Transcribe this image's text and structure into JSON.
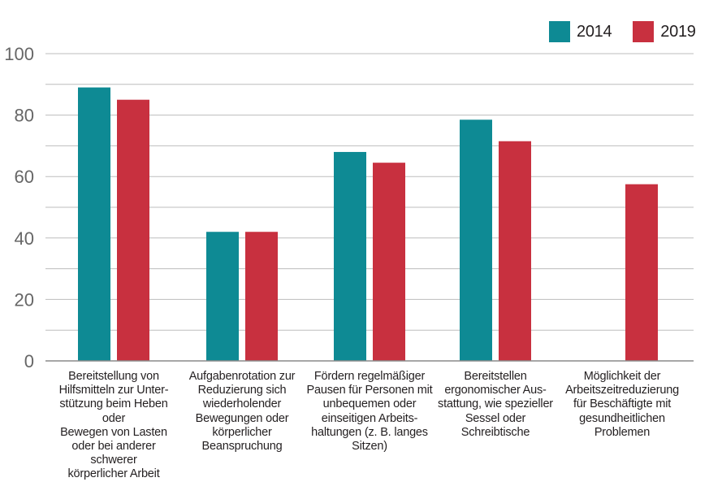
{
  "colors": {
    "2014": "#0e8a94",
    "2019": "#c8303f",
    "grid": "#bdbdbd",
    "axis": "#8a8a8a",
    "tick": "#666666"
  },
  "chart_data": {
    "type": "bar",
    "title": "",
    "xlabel": "",
    "ylabel": "",
    "ylim": [
      0,
      100
    ],
    "yticks": [
      0,
      20,
      40,
      60,
      80,
      100
    ],
    "grid": true,
    "legend_position": "top-right",
    "categories": [
      [
        "Bereitstellung von",
        "Hilfsmitteln zur Unter-",
        "stützung beim Heben oder",
        "Bewegen von Lasten",
        "oder bei anderer schwerer",
        "körperlicher Arbeit"
      ],
      [
        "Aufgabenrotation zur",
        "Reduzierung sich",
        "wiederholender",
        "Bewegungen oder",
        "körperlicher",
        "Beanspruchung"
      ],
      [
        "Fördern regelmäßiger",
        "Pausen für Personen mit",
        "unbequemen oder",
        "einseitigen Arbeits-",
        "haltungen (z. B. langes",
        "Sitzen)"
      ],
      [
        "Bereitstellen",
        "ergonomischer Aus-",
        "stattung, wie spezieller",
        "Sessel oder",
        "Schreibtische"
      ],
      [
        "Möglichkeit der",
        "Arbeitszeitreduzierung",
        "für Beschäftigte mit",
        "gesundheitlichen",
        "Problemen"
      ]
    ],
    "series": [
      {
        "name": "2014",
        "values": [
          89,
          42,
          68,
          78.5,
          null
        ]
      },
      {
        "name": "2019",
        "values": [
          85,
          42,
          64.5,
          71.5,
          57.5
        ]
      }
    ]
  }
}
